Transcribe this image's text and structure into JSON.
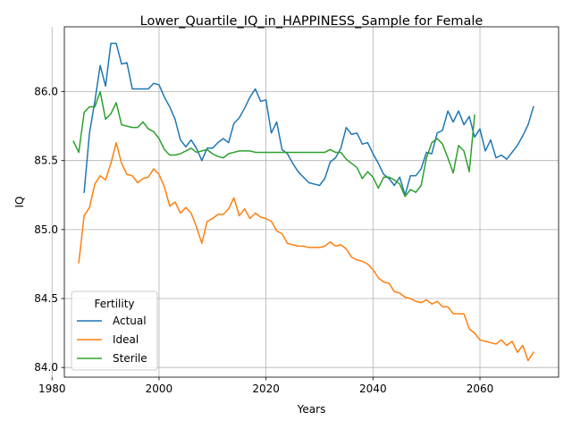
{
  "chart_data": {
    "type": "line",
    "title": "Lower_Quartile_IQ_in_HAPPINESS_Sample for Female",
    "xlabel": "Years",
    "ylabel": "IQ",
    "xlim": [
      1982.3,
      2074.7
    ],
    "ylim": [
      83.93,
      86.47
    ],
    "xticks": [
      1980,
      2000,
      2020,
      2040,
      2060
    ],
    "xtick_labels": [
      "1980",
      "2000",
      "2020",
      "2040",
      "2060"
    ],
    "yticks": [
      84.0,
      84.5,
      85.0,
      85.5,
      86.0
    ],
    "ytick_labels": [
      "84.0",
      "84.5",
      "85.0",
      "85.5",
      "86.0"
    ],
    "grid": true,
    "legend": {
      "title": "Fertility",
      "placement": "lower-left",
      "entries": [
        "Actual",
        "Ideal",
        "Sterile"
      ]
    },
    "series": [
      {
        "name": "Actual",
        "color": "#1f77b4",
        "x": [
          1986,
          1987,
          1988,
          1989,
          1990,
          1991,
          1992,
          1993,
          1994,
          1995,
          1996,
          1997,
          1998,
          1999,
          2000,
          2001,
          2002,
          2003,
          2004,
          2005,
          2006,
          2007,
          2008,
          2009,
          2010,
          2011,
          2012,
          2013,
          2014,
          2015,
          2016,
          2017,
          2018,
          2019,
          2020,
          2021,
          2022,
          2023,
          2024,
          2025,
          2026,
          2027,
          2028,
          2029,
          2030,
          2031,
          2032,
          2033,
          2034,
          2035,
          2036,
          2037,
          2038,
          2039,
          2040,
          2041,
          2042,
          2043,
          2044,
          2045,
          2046,
          2047,
          2048,
          2049,
          2050,
          2051,
          2052,
          2053,
          2054,
          2055,
          2056,
          2057,
          2058,
          2059,
          2060,
          2061,
          2062,
          2063,
          2064,
          2065,
          2066,
          2067,
          2068,
          2069,
          2070
        ],
        "y": [
          85.27,
          85.7,
          85.93,
          86.19,
          86.04,
          86.35,
          86.35,
          86.2,
          86.21,
          86.02,
          86.02,
          86.02,
          86.02,
          86.06,
          86.05,
          85.96,
          85.89,
          85.8,
          85.65,
          85.6,
          85.65,
          85.59,
          85.5,
          85.59,
          85.59,
          85.63,
          85.66,
          85.63,
          85.77,
          85.81,
          85.88,
          85.96,
          86.02,
          85.93,
          85.94,
          85.7,
          85.78,
          85.58,
          85.55,
          85.48,
          85.42,
          85.38,
          85.34,
          85.33,
          85.32,
          85.37,
          85.49,
          85.52,
          85.59,
          85.74,
          85.69,
          85.7,
          85.62,
          85.63,
          85.55,
          85.48,
          85.4,
          85.37,
          85.32,
          85.38,
          85.25,
          85.39,
          85.39,
          85.44,
          85.56,
          85.55,
          85.7,
          85.72,
          85.86,
          85.78,
          85.86,
          85.76,
          85.82,
          85.67,
          85.73,
          85.57,
          85.65,
          85.52,
          85.54,
          85.51,
          85.56,
          85.61,
          85.68,
          85.76,
          85.89
        ]
      },
      {
        "name": "Ideal",
        "color": "#ff7f0e",
        "x": [
          1985,
          1986,
          1987,
          1988,
          1989,
          1990,
          1991,
          1992,
          1993,
          1994,
          1995,
          1996,
          1997,
          1998,
          1999,
          2000,
          2001,
          2002,
          2003,
          2004,
          2005,
          2006,
          2007,
          2008,
          2009,
          2010,
          2011,
          2012,
          2013,
          2014,
          2015,
          2016,
          2017,
          2018,
          2019,
          2020,
          2021,
          2022,
          2023,
          2024,
          2025,
          2026,
          2027,
          2028,
          2029,
          2030,
          2031,
          2032,
          2033,
          2034,
          2035,
          2036,
          2037,
          2038,
          2039,
          2040,
          2041,
          2042,
          2043,
          2044,
          2045,
          2046,
          2047,
          2048,
          2049,
          2050,
          2051,
          2052,
          2053,
          2054,
          2055,
          2056,
          2057,
          2058,
          2059,
          2060,
          2061,
          2062,
          2063,
          2064,
          2065,
          2066,
          2067,
          2068,
          2069,
          2070
        ],
        "y": [
          84.76,
          85.1,
          85.16,
          85.33,
          85.39,
          85.36,
          85.48,
          85.63,
          85.48,
          85.4,
          85.39,
          85.34,
          85.37,
          85.38,
          85.44,
          85.4,
          85.31,
          85.17,
          85.2,
          85.12,
          85.16,
          85.12,
          85.02,
          84.9,
          85.06,
          85.08,
          85.11,
          85.11,
          85.15,
          85.23,
          85.1,
          85.15,
          85.08,
          85.12,
          85.09,
          85.08,
          85.06,
          84.99,
          84.97,
          84.9,
          84.89,
          84.88,
          84.88,
          84.87,
          84.87,
          84.87,
          84.88,
          84.91,
          84.88,
          84.89,
          84.86,
          84.8,
          84.78,
          84.77,
          84.75,
          84.71,
          84.65,
          84.62,
          84.61,
          84.55,
          84.54,
          84.51,
          84.5,
          84.48,
          84.47,
          84.49,
          84.46,
          84.48,
          84.44,
          84.44,
          84.39,
          84.39,
          84.39,
          84.28,
          84.25,
          84.2,
          84.19,
          84.18,
          84.17,
          84.2,
          84.16,
          84.19,
          84.11,
          84.16,
          84.05,
          84.11
        ]
      },
      {
        "name": "Sterile",
        "color": "#2ca02c",
        "x": [
          1984,
          1985,
          1986,
          1987,
          1988,
          1989,
          1990,
          1991,
          1992,
          1993,
          1994,
          1995,
          1996,
          1997,
          1998,
          1999,
          2000,
          2001,
          2002,
          2003,
          2004,
          2005,
          2006,
          2007,
          2008,
          2009,
          2010,
          2011,
          2012,
          2013,
          2014,
          2015,
          2016,
          2017,
          2018,
          2019,
          2020,
          2021,
          2022,
          2023,
          2024,
          2025,
          2026,
          2027,
          2028,
          2029,
          2030,
          2031,
          2032,
          2033,
          2034,
          2035,
          2036,
          2037,
          2038,
          2039,
          2040,
          2041,
          2042,
          2043,
          2044,
          2045,
          2046,
          2047,
          2048,
          2049,
          2050,
          2051,
          2052,
          2053,
          2054,
          2055,
          2056,
          2057,
          2058,
          2059
        ],
        "y": [
          85.64,
          85.56,
          85.85,
          85.89,
          85.89,
          86.0,
          85.8,
          85.84,
          85.92,
          85.76,
          85.75,
          85.74,
          85.74,
          85.78,
          85.73,
          85.71,
          85.66,
          85.58,
          85.54,
          85.54,
          85.55,
          85.57,
          85.59,
          85.56,
          85.57,
          85.58,
          85.55,
          85.53,
          85.52,
          85.55,
          85.56,
          85.57,
          85.57,
          85.57,
          85.56,
          85.56,
          85.56,
          85.56,
          85.56,
          85.56,
          85.56,
          85.56,
          85.56,
          85.56,
          85.56,
          85.56,
          85.56,
          85.56,
          85.58,
          85.56,
          85.56,
          85.51,
          85.48,
          85.45,
          85.37,
          85.42,
          85.38,
          85.3,
          85.38,
          85.38,
          85.36,
          85.33,
          85.24,
          85.29,
          85.27,
          85.32,
          85.52,
          85.63,
          85.66,
          85.62,
          85.52,
          85.41,
          85.61,
          85.57,
          85.42,
          85.83
        ]
      }
    ]
  }
}
